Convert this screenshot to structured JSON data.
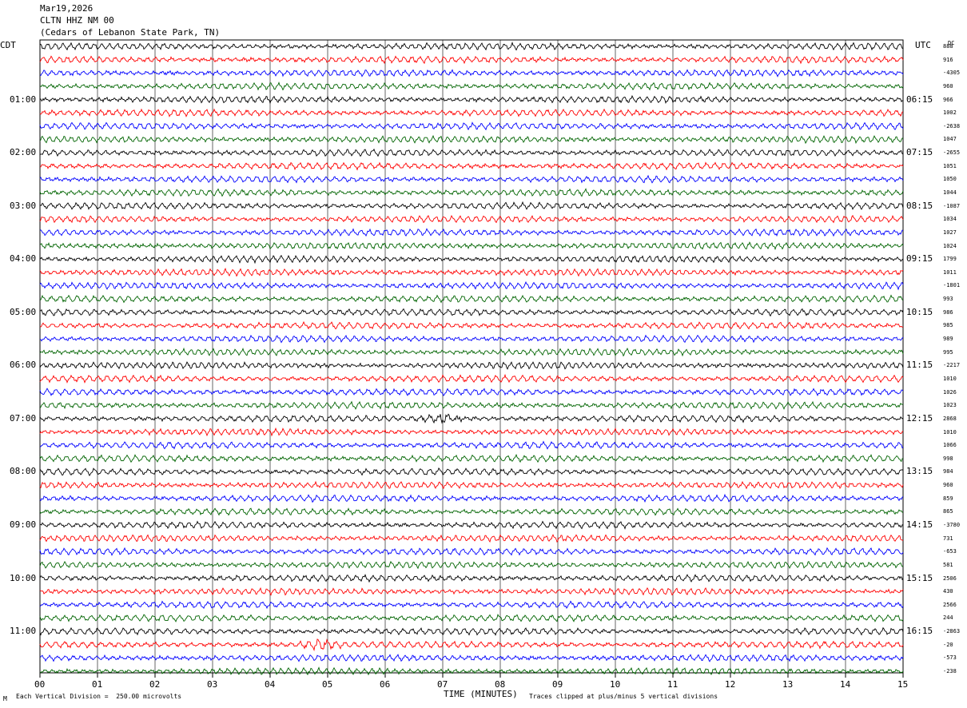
{
  "header": {
    "date": "Mar19,2026",
    "station": "CLTN HHZ NM 00",
    "location": "(Cedars of Lebanon State Park, TN)"
  },
  "left_zone": "CDT",
  "right_zone": "UTC",
  "dc_header": "DC",
  "footer": {
    "scale": "Each Vertical Division =  250.00 microvolts",
    "xlabel": "TIME (MINUTES)",
    "clip_note": "Traces clipped at plus/minus 5 vertical divisions",
    "corner": "M"
  },
  "colors": {
    "trace_cycle": [
      "#000000",
      "#ff0000",
      "#0000ff",
      "#006400"
    ],
    "grid": "#000000"
  },
  "chart_data": {
    "type": "line",
    "title": "CLTN HHZ NM 00",
    "xlabel": "TIME (MINUTES)",
    "xlim": [
      0,
      15
    ],
    "x_ticks": [
      "00",
      "01",
      "02",
      "03",
      "04",
      "05",
      "06",
      "07",
      "08",
      "09",
      "10",
      "11",
      "12",
      "13",
      "14",
      "15"
    ],
    "row_minutes": 15,
    "rows": 48,
    "left_hour_labels": [
      "01:00",
      "02:00",
      "03:00",
      "04:00",
      "05:00",
      "06:00",
      "07:00",
      "08:00",
      "09:00",
      "10:00",
      "11:00"
    ],
    "right_hour_labels": [
      "06:15",
      "07:15",
      "08:15",
      "09:15",
      "10:15",
      "11:15",
      "12:15",
      "13:15",
      "14:15",
      "15:15",
      "16:15"
    ],
    "dc_offsets": [
      "888",
      "916",
      "-4305",
      "960",
      "966",
      "1002",
      "-2638",
      "1047",
      "-2655",
      "1051",
      "1050",
      "1044",
      "-1087",
      "1034",
      "1027",
      "1024",
      "1799",
      "1011",
      "-1801",
      "993",
      "986",
      "985",
      "989",
      "995",
      "-2217",
      "1010",
      "1026",
      "1023",
      "2868",
      "1010",
      "1066",
      "998",
      "984",
      "960",
      "859",
      "865",
      "-3780",
      "731",
      "-653",
      "581",
      "2506",
      "430",
      "2566",
      "244",
      "-2863",
      "-20",
      "-573",
      "-238"
    ],
    "events": [
      {
        "row": 28,
        "minute": 7.0,
        "label": ""
      },
      {
        "row": 45,
        "minute": 4.85,
        "label": ""
      }
    ]
  }
}
